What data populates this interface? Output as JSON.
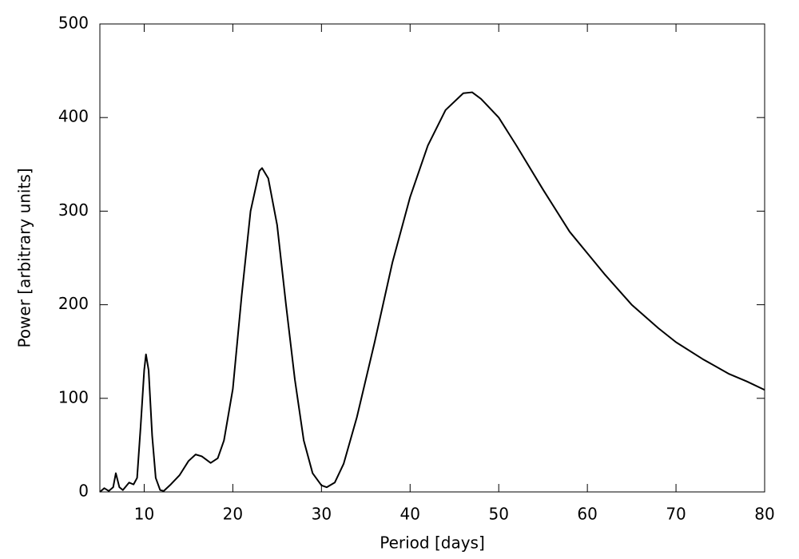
{
  "chart_data": {
    "type": "line",
    "x_label": "Period [days]",
    "y_label": "Power [arbitrary units]",
    "x": [
      5,
      5.5,
      6,
      6.5,
      6.8,
      7.2,
      7.6,
      8.3,
      8.8,
      9.2,
      9.6,
      10.0,
      10.2,
      10.5,
      10.9,
      11.3,
      11.8,
      12.2,
      13,
      14,
      15,
      15.8,
      16.5,
      17.5,
      18.3,
      19,
      20,
      21,
      22,
      23,
      23.3,
      24,
      25,
      26,
      27,
      28,
      29,
      30,
      30.6,
      31.5,
      32.5,
      34,
      36,
      38,
      40,
      42,
      44,
      46,
      47,
      48,
      50,
      52,
      55,
      58,
      60,
      62,
      65,
      68,
      70,
      73,
      76,
      78,
      80
    ],
    "series": [
      {
        "color": "#000000",
        "values": [
          0,
          4,
          1,
          5,
          20,
          5,
          2,
          10,
          8,
          15,
          70,
          130,
          147,
          130,
          60,
          15,
          2,
          1,
          8,
          18,
          33,
          40,
          38,
          31,
          36,
          55,
          110,
          210,
          300,
          343,
          346,
          335,
          285,
          200,
          120,
          55,
          20,
          7,
          5,
          10,
          30,
          80,
          160,
          245,
          315,
          370,
          408,
          426,
          427,
          420,
          400,
          370,
          323,
          278,
          255,
          232,
          200,
          175,
          160,
          142,
          126,
          118,
          109
        ]
      }
    ],
    "xlim": [
      5,
      80
    ],
    "xticks": [
      10,
      20,
      30,
      40,
      50,
      60,
      70,
      80
    ],
    "ylim": [
      0,
      500
    ],
    "yticks": [
      0,
      100,
      200,
      300,
      400,
      500
    ],
    "grid": false
  }
}
